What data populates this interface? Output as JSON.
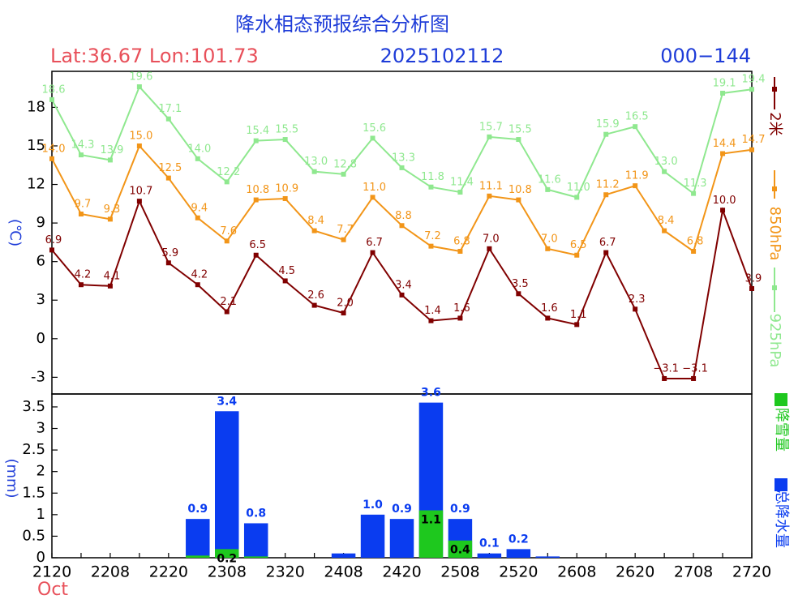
{
  "chart_data": [
    {
      "type": "line",
      "title": "降水相态预报综合分析图",
      "location": "Lat:36.67  Lon:101.73",
      "init_time": "2025102112",
      "forecast_range": "000−144",
      "y_label": "(℃)",
      "ylim": [
        -4.3,
        20.8
      ],
      "yticks": [
        -3,
        0,
        3,
        6,
        9,
        12,
        15,
        18
      ],
      "series": [
        {
          "name": "2米",
          "color": "#800000",
          "values": [
            6.9,
            4.2,
            4.1,
            10.7,
            5.9,
            4.2,
            2.1,
            6.5,
            4.5,
            2.6,
            2.0,
            6.7,
            3.4,
            1.4,
            1.6,
            7.0,
            3.5,
            1.6,
            1.1,
            6.7,
            2.3,
            -3.1,
            -3.1,
            10.0,
            3.9
          ],
          "value_labels": [
            "6.9",
            "4.2",
            "4.1",
            "10.7",
            "5.9",
            "4.2",
            "2.1",
            "6.5",
            "4.5",
            "2.6",
            "2.0",
            "6.7",
            "3.4",
            "1.4",
            "1.6",
            "7.0",
            "3.5",
            "1.6",
            "1.1",
            "6.7",
            "2.3",
            "−3.1",
            "−3.1",
            "10.0",
            "3.9"
          ]
        },
        {
          "name": "850hPa",
          "color": "#f29518",
          "values": [
            14.0,
            9.7,
            9.3,
            15.0,
            12.5,
            9.4,
            7.6,
            10.8,
            10.9,
            8.4,
            7.7,
            11.0,
            8.8,
            7.2,
            6.8,
            11.1,
            10.8,
            7.0,
            6.5,
            11.2,
            11.9,
            8.4,
            6.8,
            14.4,
            14.7
          ],
          "value_labels": [
            "14.0",
            "9.7",
            "9.3",
            "15.0",
            "12.5",
            "9.4",
            "7.6",
            "10.8",
            "10.9",
            "8.4",
            "7.7",
            "11.0",
            "8.8",
            "7.2",
            "6.8",
            "11.1",
            "10.8",
            "7.0",
            "6.5",
            "11.2",
            "11.9",
            "8.4",
            "6.8",
            "14.4",
            "14.7"
          ]
        },
        {
          "name": "925hPa",
          "color": "#8fe88f",
          "values": [
            18.6,
            14.3,
            13.9,
            19.6,
            17.1,
            14.0,
            12.2,
            15.4,
            15.5,
            13.0,
            12.8,
            15.6,
            13.3,
            11.8,
            11.4,
            15.7,
            15.5,
            11.6,
            11.0,
            15.9,
            16.5,
            13.0,
            11.3,
            19.1,
            19.4
          ],
          "value_labels": [
            "18.6",
            "14.3",
            "13.9",
            "19.6",
            "17.1",
            "14.0",
            "12.2",
            "15.4",
            "15.5",
            "13.0",
            "12.8",
            "15.6",
            "13.3",
            "11.8",
            "11.4",
            "15.7",
            "15.5",
            "11.6",
            "11.0",
            "15.9",
            "16.5",
            "13.0",
            "11.3",
            "19.1",
            "19.4"
          ]
        }
      ]
    },
    {
      "type": "bar",
      "y_label": "(mm)",
      "x_note": "Oct",
      "categories": [
        "2120",
        null,
        "2208",
        null,
        "2220",
        null,
        "2308",
        null,
        "2320",
        null,
        "2408",
        null,
        "2420",
        null,
        "2508",
        null,
        "2520",
        null,
        "2608",
        null,
        "2620",
        null,
        "2708",
        null,
        "2720"
      ],
      "ylim": [
        0,
        3.8
      ],
      "yticks": [
        0,
        0.5,
        1,
        1.5,
        2,
        2.5,
        3,
        3.5
      ],
      "series": [
        {
          "name": "总降水量",
          "color": "#0a3cf0",
          "label_color": "#0a3cf0",
          "values": [
            0,
            0,
            0,
            0,
            0,
            0.9,
            3.4,
            0.8,
            0,
            0,
            0.1,
            1.0,
            0.9,
            3.6,
            0.9,
            0.1,
            0.2,
            0.03,
            0,
            0,
            0,
            0,
            0,
            0,
            0
          ],
          "value_labels": [
            null,
            null,
            null,
            null,
            null,
            "0.9",
            "3.4",
            "0.8",
            null,
            null,
            null,
            "1.0",
            "0.9",
            "3.6",
            "0.9",
            "0.1",
            "0.2",
            null,
            null,
            null,
            null,
            null,
            null,
            null,
            null
          ]
        },
        {
          "name": "降雪量",
          "color": "#1ec81e",
          "label_color": "#000000",
          "values": [
            0,
            0,
            0,
            0,
            0,
            0.05,
            0.2,
            0.03,
            0,
            0,
            0,
            0,
            0,
            1.1,
            0.4,
            0,
            0,
            0,
            0,
            0,
            0,
            0,
            0,
            0,
            0
          ],
          "value_labels": [
            null,
            null,
            null,
            null,
            null,
            null,
            "0.2",
            null,
            null,
            null,
            null,
            null,
            null,
            "1.1",
            "0.4",
            null,
            null,
            null,
            null,
            null,
            null,
            null,
            null,
            null,
            null
          ]
        }
      ]
    }
  ]
}
